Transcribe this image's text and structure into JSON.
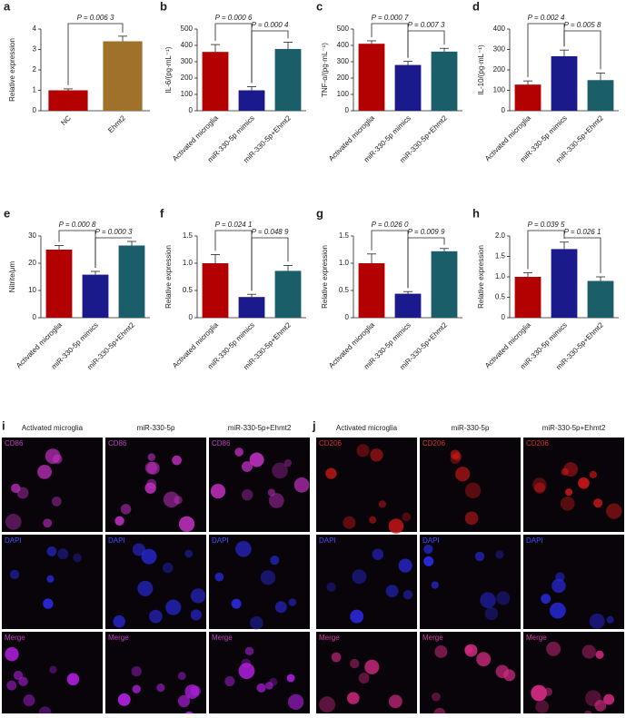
{
  "chart_data": [
    {
      "type": "bar",
      "label": "a",
      "y_label": "Relative expression",
      "categories": [
        "NC",
        "Ehmt2"
      ],
      "values": [
        1.0,
        3.4
      ],
      "errors": [
        0.07,
        0.25
      ],
      "colors": [
        "#b30000",
        "#a0712a"
      ],
      "ylim": [
        0,
        4
      ],
      "yticks": [
        0,
        1,
        2,
        3,
        4
      ],
      "annotations": [
        "P = 0.006 3"
      ]
    },
    {
      "type": "bar",
      "label": "b",
      "y_label": "IL-6/(pg·mL⁻¹)",
      "categories": [
        "Activated microglia",
        "miR-330-5p mimics",
        "miR-330-5p+Ehmt2"
      ],
      "values": [
        360,
        125,
        378
      ],
      "errors": [
        45,
        22,
        42
      ],
      "colors": [
        "#b30000",
        "#1a1a8c",
        "#1a5e6a"
      ],
      "ylim": [
        0,
        500
      ],
      "yticks": [
        0,
        100,
        200,
        300,
        400,
        500
      ],
      "annotations": [
        "P = 0.000 6",
        "P = 0.000 4"
      ]
    },
    {
      "type": "bar",
      "label": "c",
      "y_label": "TNF-α/(pg·mL⁻¹)",
      "categories": [
        "Activated microglia",
        "miR-330-5p mimics",
        "miR-330-5p+Ehmt2"
      ],
      "values": [
        410,
        280,
        362
      ],
      "errors": [
        18,
        22,
        20
      ],
      "colors": [
        "#b30000",
        "#1a1a8c",
        "#1a5e6a"
      ],
      "ylim": [
        0,
        500
      ],
      "yticks": [
        0,
        100,
        200,
        300,
        400,
        500
      ],
      "annotations": [
        "P = 0.000 7",
        "P = 0.007 3"
      ]
    },
    {
      "type": "bar",
      "label": "d",
      "y_label": "IL-10/(pg·mL⁻¹)",
      "categories": [
        "Activated microglia",
        "miR-330-5p mimics",
        "miR-330-5p+Ehmt2"
      ],
      "values": [
        128,
        267,
        150
      ],
      "errors": [
        18,
        30,
        35
      ],
      "colors": [
        "#b30000",
        "#1a1a8c",
        "#1a5e6a"
      ],
      "ylim": [
        0,
        400
      ],
      "yticks": [
        0,
        100,
        200,
        300,
        400
      ],
      "annotations": [
        "P = 0.002 4",
        "P = 0.005 8"
      ]
    },
    {
      "type": "bar",
      "label": "e",
      "y_label": "Nitrite/μm",
      "categories": [
        "Activated microglia",
        "miR-330-5p mimics",
        "miR-330-5p+Ehmt2"
      ],
      "values": [
        25,
        15.8,
        26.5
      ],
      "errors": [
        1.5,
        1.2,
        1.5
      ],
      "colors": [
        "#b30000",
        "#1a1a8c",
        "#1a5e6a"
      ],
      "ylim": [
        0,
        30
      ],
      "yticks": [
        0,
        10,
        20,
        30
      ],
      "annotations": [
        "P = 0.000 8",
        "P = 0.000 3"
      ]
    },
    {
      "type": "bar",
      "label": "f",
      "y_label": "Relative expression",
      "categories": [
        "Activated microglia",
        "miR-330-5p mimics",
        "miR-330-5p+Ehmt2"
      ],
      "values": [
        1.0,
        0.38,
        0.86
      ],
      "errors": [
        0.16,
        0.05,
        0.1
      ],
      "colors": [
        "#b30000",
        "#1a1a8c",
        "#1a5e6a"
      ],
      "ylim": [
        0,
        1.5
      ],
      "yticks": [
        0,
        0.5,
        {
          "value": 1,
          "label": "1.0"
        },
        1.5
      ],
      "annotations": [
        "P = 0.024 1",
        "P = 0.048 9"
      ]
    },
    {
      "type": "bar",
      "label": "g",
      "y_label": "Relative expression",
      "categories": [
        "Activated microglia",
        "miR-330-5p mimics",
        "miR-330-5p+Ehmt2"
      ],
      "values": [
        1.0,
        0.44,
        1.22
      ],
      "errors": [
        0.17,
        0.04,
        0.05
      ],
      "colors": [
        "#b30000",
        "#1a1a8c",
        "#1a5e6a"
      ],
      "ylim": [
        0,
        1.5
      ],
      "yticks": [
        0,
        0.5,
        {
          "value": 1,
          "label": "1.0"
        },
        1.5
      ],
      "annotations": [
        "P = 0.026 0",
        "P = 0.009 9"
      ]
    },
    {
      "type": "bar",
      "label": "h",
      "y_label": "Relative expression",
      "categories": [
        "Activated microglia",
        "miR-330-5p mimics",
        "miR-330-5p+Ehmt2"
      ],
      "values": [
        1.0,
        1.68,
        0.9
      ],
      "errors": [
        0.1,
        0.17,
        0.1
      ],
      "colors": [
        "#b30000",
        "#1a1a8c",
        "#1a5e6a"
      ],
      "ylim": [
        0,
        2
      ],
      "yticks": [
        0,
        0.5,
        {
          "value": 1,
          "label": "1.0"
        },
        1.5,
        {
          "value": 2,
          "label": "2.0"
        }
      ],
      "annotations": [
        "P = 0.039 5",
        "P = 0.026 1"
      ]
    }
  ],
  "image_panels": [
    {
      "label": "i",
      "columns": [
        "Activated microglia",
        "miR-330-5p",
        "miR-330-5p+Ehmt2"
      ],
      "rows": [
        "CD86",
        "DAPI",
        "Merge"
      ]
    },
    {
      "label": "j",
      "columns": [
        "Activated microglia",
        "miR-330-5p",
        "miR-330-5p+Ehmt2"
      ],
      "rows": [
        "CD206",
        "DAPI",
        "Merge"
      ]
    }
  ]
}
